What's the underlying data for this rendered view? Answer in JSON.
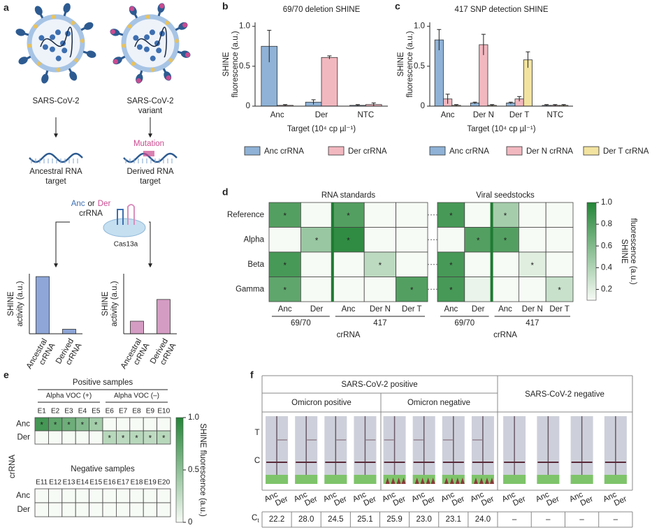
{
  "panel_labels": [
    "a",
    "b",
    "c",
    "d",
    "e",
    "f"
  ],
  "panel_a": {
    "virus_labels": [
      [
        "SARS-CoV-2"
      ],
      [
        "SARS-CoV-2",
        "variant"
      ]
    ],
    "mutation": "Mutation",
    "targets": [
      [
        "Ancestral RNA",
        "target"
      ],
      [
        "Derived RNA",
        "target"
      ]
    ],
    "guide": {
      "anc": "Anc",
      "or": "or",
      "der": "Der",
      "crrna": "crRNA"
    },
    "enzyme": "Cas13a"
  },
  "chart_data": [
    {
      "type": "bar",
      "ylabel": [
        "SHINE",
        "activity (a.u.)"
      ],
      "categories": [
        "Ancestral crRNA",
        "Derived crRNA"
      ],
      "values": [
        1.0,
        0.08
      ],
      "color": "#8ea6d8",
      "ylim": [
        0,
        1.05
      ],
      "category_rotation": -60
    },
    {
      "type": "bar",
      "ylabel": [
        "SHINE",
        "activity (a.u.)"
      ],
      "categories": [
        "Ancestral crRNA",
        "Derived crRNA"
      ],
      "values": [
        0.22,
        0.6
      ],
      "color": "#d59cc3",
      "ylim": [
        0,
        1.05
      ],
      "category_rotation": -60
    },
    {
      "type": "bar",
      "title": "69/70  deletion SHINE",
      "ylabel": [
        "SHINE",
        "fluorescence (a.u.)"
      ],
      "xlabel": "Target (10⁴ cp µl⁻¹)",
      "categories": [
        "Anc",
        "Der",
        "NTC"
      ],
      "series": [
        {
          "name": "Anc crRNA",
          "color": "#8fb2d6",
          "values": [
            0.75,
            0.05,
            0.01
          ],
          "errors": [
            0.2,
            0.03,
            0.01
          ]
        },
        {
          "name": "Der crRNA",
          "color": "#f2b8c0",
          "values": [
            0.01,
            0.61,
            0.02
          ],
          "errors": [
            0.01,
            0.02,
            0.02
          ]
        }
      ],
      "ylim": [
        0,
        1.05
      ],
      "yticks": [
        0,
        0.5,
        {
          "value": 1,
          "label": "1.0"
        }
      ],
      "legend": "bottom"
    },
    {
      "type": "bar",
      "title": "417 SNP detection SHINE",
      "ylabel": [
        "SHINE",
        "fluorescence (a.u.)"
      ],
      "xlabel": "Target (10⁴ cp µl⁻¹)",
      "categories": [
        "Anc",
        "Der N",
        "Der T",
        "NTC"
      ],
      "series": [
        {
          "name": "Anc crRNA",
          "color": "#8fb2d6",
          "values": [
            0.83,
            0.04,
            0.04,
            0.01
          ],
          "errors": [
            0.13,
            0.01,
            0.01,
            0.01
          ]
        },
        {
          "name": "Der N crRNA",
          "color": "#f2b8c0",
          "values": [
            0.09,
            0.77,
            0.09,
            0.01
          ],
          "errors": [
            0.06,
            0.13,
            0.03,
            0.01
          ]
        },
        {
          "name": "Der T crRNA",
          "color": "#f2e3a0",
          "values": [
            0.01,
            0.01,
            0.58,
            0.01
          ],
          "errors": [
            0.01,
            0.01,
            0.1,
            0.01
          ]
        }
      ],
      "ylim": [
        0,
        1.05
      ],
      "yticks": [
        0,
        0.5,
        {
          "value": 1,
          "label": "1.0"
        }
      ],
      "legend": "bottom"
    },
    {
      "type": "heatmap",
      "title": "RNA standards",
      "rows": [
        "Reference",
        "Alpha",
        "Beta",
        "Gamma"
      ],
      "cols": [
        "Anc",
        "Der",
        "Anc",
        "Der N",
        "Der T"
      ],
      "col_groups": [
        "69/70",
        "69/70",
        "417",
        "417",
        "417"
      ],
      "xlabel": "crRNA",
      "values": [
        [
          0.8,
          0.1,
          0.8,
          0.1,
          0.05
        ],
        [
          0.1,
          0.5,
          0.95,
          0.1,
          0.05
        ],
        [
          0.85,
          0.1,
          0.0,
          0.35,
          0.05
        ],
        [
          0.75,
          0.1,
          0.05,
          0.1,
          0.8
        ]
      ],
      "cell_labels": [
        [
          "*",
          null,
          "*",
          null,
          null
        ],
        [
          null,
          "*",
          "*",
          null,
          null
        ],
        [
          "*",
          null,
          null,
          "*",
          null
        ],
        [
          "*",
          null,
          null,
          null,
          "*"
        ]
      ],
      "clim": [
        0.1,
        1.0
      ],
      "group_divider": true
    },
    {
      "type": "heatmap",
      "title": "Viral seedstocks",
      "cols": [
        "Anc",
        "Der",
        "Anc",
        "Der N",
        "Der T"
      ],
      "col_groups": [
        "69/70",
        "69/70",
        "417",
        "417",
        "417"
      ],
      "xlabel": "crRNA",
      "values": [
        [
          0.85,
          0.05,
          0.45,
          0.05,
          0.05
        ],
        [
          0.05,
          0.8,
          0.8,
          0.05,
          0.05
        ],
        [
          0.85,
          0.1,
          0.0,
          0.2,
          0.05
        ],
        [
          0.85,
          0.15,
          0.05,
          0.1,
          0.3
        ]
      ],
      "cell_labels": [
        [
          "*",
          null,
          "*",
          null,
          null
        ],
        [
          null,
          "*",
          "*",
          null,
          null
        ],
        [
          "*",
          null,
          null,
          "*",
          null
        ],
        [
          "*",
          null,
          null,
          null,
          "*"
        ]
      ],
      "clim": [
        0.1,
        1.0
      ],
      "group_divider": true,
      "colorbar": {
        "label": [
          "SHINE",
          "fluorescence (a.u.)"
        ],
        "ticks": [
          0.2,
          0.4,
          0.6,
          0.8,
          {
            "value": 1,
            "label": "1.0"
          }
        ]
      }
    },
    {
      "type": "heatmap",
      "title": "Positive samples",
      "rows": [
        "Anc",
        "Der"
      ],
      "ylabel": "crRNA",
      "cols": [
        "E1",
        "E2",
        "E3",
        "E4",
        "E5",
        "E6",
        "E7",
        "E8",
        "E9",
        "E10"
      ],
      "col_groups": [
        "Alpha VOC (+)",
        "Alpha VOC (+)",
        "Alpha VOC (+)",
        "Alpha VOC (+)",
        "Alpha VOC (+)",
        "Alpha VOC (–)",
        "Alpha VOC (–)",
        "Alpha VOC (–)",
        "Alpha VOC (–)",
        "Alpha VOC (–)"
      ],
      "values": [
        [
          0.85,
          0.72,
          0.65,
          0.55,
          0.4,
          0,
          0,
          0,
          0,
          0
        ],
        [
          0,
          0,
          0,
          0,
          0,
          0.3,
          0.28,
          0.3,
          0.27,
          0.3
        ]
      ],
      "cell_labels": [
        [
          "*",
          "*",
          "*",
          "*",
          "*",
          null,
          null,
          null,
          null,
          null
        ],
        [
          null,
          null,
          null,
          null,
          null,
          "*",
          "*",
          "*",
          "*",
          "*"
        ]
      ],
      "clim": [
        0,
        1
      ],
      "col_labels_position": "top"
    },
    {
      "type": "heatmap",
      "title": "Negative samples",
      "rows": [
        "Anc",
        "Der"
      ],
      "cols": [
        "E11",
        "E12",
        "E13",
        "E14",
        "E15",
        "E16",
        "E17",
        "E18",
        "E19",
        "E20"
      ],
      "values": [
        [
          0,
          0,
          0,
          0,
          0,
          0,
          0,
          0,
          0,
          0
        ],
        [
          0,
          0,
          0,
          0,
          0,
          0,
          0,
          0,
          0,
          0
        ]
      ],
      "clim": [
        0,
        1
      ],
      "col_labels_position": "top",
      "colorbar": {
        "label": [
          "SHINE fluorescence (a.u.)"
        ],
        "ticks": [
          0,
          0.5,
          {
            "value": 1,
            "label": "1.0"
          }
        ]
      }
    }
  ],
  "panel_f": {
    "headers": {
      "positive": "SARS-CoV-2 positive",
      "negative": "SARS-CoV-2 negative",
      "omicron_positive": "Omicron positive",
      "omicron_negative": "Omicron negative"
    },
    "bands": [
      "T",
      "C"
    ],
    "lanes": [
      "Anc",
      "Der"
    ],
    "ct_label": "C",
    "ct_subscript": "t",
    "ct_values": [
      "22.2",
      "28.0",
      "24.5",
      "25.1",
      "25.9",
      "23.0",
      "23.1",
      "24.0",
      "–",
      "–",
      "–",
      "–"
    ]
  }
}
